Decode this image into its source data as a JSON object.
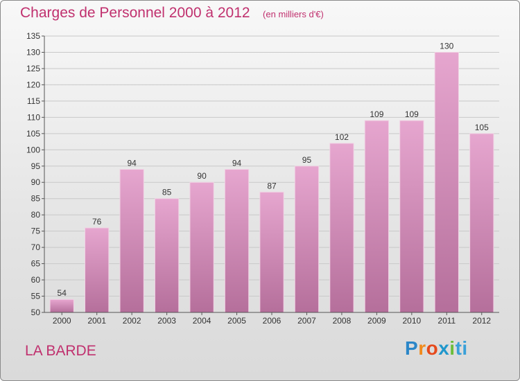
{
  "header": {
    "title": "Charges de Personnel 2000 à 2012",
    "subtitle": "(en milliers d'€)"
  },
  "location": "LA BARDE",
  "brand": {
    "parts": [
      "P",
      "r",
      "o",
      "x",
      "i",
      "ti"
    ],
    "colors": [
      "#2a86c8",
      "#f08a1c",
      "#e64a1c",
      "#1f97cc",
      "#6bbd3a",
      "#3aa0d8"
    ]
  },
  "chart_data": {
    "type": "bar",
    "title": "Charges de Personnel 2000 à 2012",
    "subtitle": "(en milliers d'€)",
    "categories": [
      "2000",
      "2001",
      "2002",
      "2003",
      "2004",
      "2005",
      "2006",
      "2007",
      "2008",
      "2009",
      "2010",
      "2011",
      "2012"
    ],
    "values": [
      54,
      76,
      94,
      85,
      90,
      94,
      87,
      95,
      102,
      109,
      109,
      130,
      105
    ],
    "ylim": [
      50,
      135
    ],
    "yticks": [
      50,
      55,
      60,
      65,
      70,
      75,
      80,
      85,
      90,
      95,
      100,
      105,
      110,
      115,
      120,
      125,
      130,
      135
    ],
    "grid": true,
    "bar_color": "#d88ab8"
  }
}
